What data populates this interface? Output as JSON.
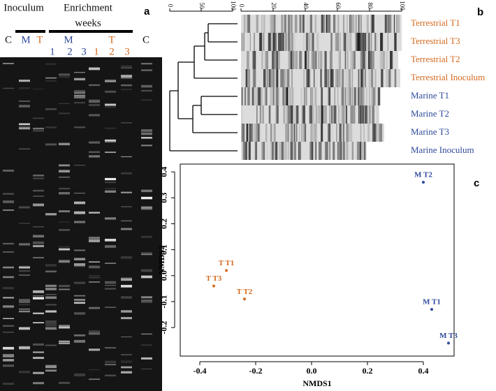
{
  "panel_a": {
    "label": "a",
    "header_left": "Inoculum",
    "header_right": "Enrichment",
    "header_right_sub": "weeks",
    "group_labels": [
      "M",
      "T"
    ],
    "lanes": [
      "C",
      "M",
      "T",
      "1",
      "2",
      "3",
      "1",
      "2",
      "3",
      "C"
    ]
  },
  "panel_b": {
    "label": "b",
    "scale_left": [
      0,
      50,
      100
    ],
    "scale_right": [
      0,
      20,
      40,
      60,
      80,
      100
    ],
    "samples": [
      "Terrestrial T1",
      "Terrestrial T3",
      "Terrestrial T2",
      "Terrestrial Inoculum",
      "Marine T1",
      "Marine T2",
      "Marine T3",
      "Marine Inoculum"
    ]
  },
  "chart_data": {
    "type": "scatter",
    "panel_label": "c",
    "xlabel": "NMDS1",
    "ylabel": "NMDS2",
    "x": [
      0.4,
      0.43,
      0.49,
      -0.305,
      -0.35,
      -0.24
    ],
    "values": [
      0.36,
      -0.13,
      -0.26,
      0.02,
      -0.04,
      -0.09
    ],
    "point_labels": [
      "M T2",
      "M T1",
      "M T3",
      "T T1",
      "T T3",
      "T T2"
    ],
    "colors": [
      "#2e4a9a",
      "#2e4a9a",
      "#2e4a9a",
      "#d4691e",
      "#d4691e",
      "#d4691e"
    ],
    "xlim": [
      -0.47,
      0.51
    ],
    "ylim": [
      -0.31,
      0.43
    ],
    "xticks": [
      -0.4,
      -0.2,
      {
        "value": 0,
        "label": "0.0"
      },
      0.2,
      0.4
    ],
    "yticks": [
      -0.2,
      -0.1,
      {
        "value": 0,
        "label": "0.0"
      },
      0.1,
      0.2,
      0.3,
      0.4
    ]
  }
}
